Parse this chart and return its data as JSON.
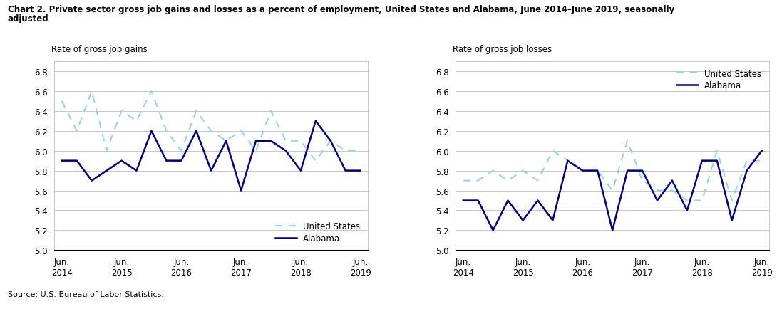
{
  "title_line1": "Chart 2. Private sector gross job gains and losses as a percent of employment, United States and Alabama, June 2014–June 2019, seasonally",
  "title_line2": "adjusted",
  "source": "Source: U.S. Bureau of Labor Statistics.",
  "left_ylabel": "Rate of gross job gains",
  "right_ylabel": "Rate of gross job losses",
  "x_labels": [
    "Jun.\n2014",
    "Jun.\n2015",
    "Jun.\n2016",
    "Jun.\n2017",
    "Jun.\n2018",
    "Jun.\n2019"
  ],
  "x_positions": [
    0,
    4,
    8,
    12,
    16,
    20
  ],
  "ylim": [
    5.0,
    6.9
  ],
  "yticks": [
    5.0,
    5.2,
    5.4,
    5.6,
    5.8,
    6.0,
    6.2,
    6.4,
    6.6,
    6.8
  ],
  "gains_us": [
    6.5,
    6.2,
    6.6,
    6.0,
    6.4,
    6.3,
    6.6,
    6.2,
    6.0,
    6.4,
    6.2,
    6.1,
    6.2,
    6.0,
    6.4,
    6.1,
    6.1,
    5.9,
    6.1,
    6.0,
    6.0
  ],
  "gains_al": [
    5.9,
    5.9,
    5.7,
    5.8,
    5.9,
    5.8,
    6.2,
    5.9,
    5.9,
    6.2,
    5.8,
    6.1,
    5.6,
    6.1,
    6.1,
    6.0,
    5.8,
    6.3,
    6.1,
    5.8,
    5.8
  ],
  "losses_us": [
    5.7,
    5.7,
    5.8,
    5.7,
    5.8,
    5.7,
    6.0,
    5.9,
    5.8,
    5.8,
    5.6,
    6.1,
    5.7,
    5.6,
    5.6,
    5.5,
    5.5,
    6.0,
    5.5,
    5.9,
    5.9
  ],
  "losses_al": [
    5.5,
    5.5,
    5.2,
    5.5,
    5.3,
    5.5,
    5.3,
    5.9,
    5.8,
    5.8,
    5.2,
    5.8,
    5.8,
    5.5,
    5.7,
    5.4,
    5.9,
    5.9,
    5.3,
    5.8,
    6.0
  ],
  "us_color": "#93D4F0",
  "al_color": "#00008B",
  "plot_bg": "#ffffff",
  "grid_color": "#C8C8C8",
  "box_color": "#C8C8C8"
}
